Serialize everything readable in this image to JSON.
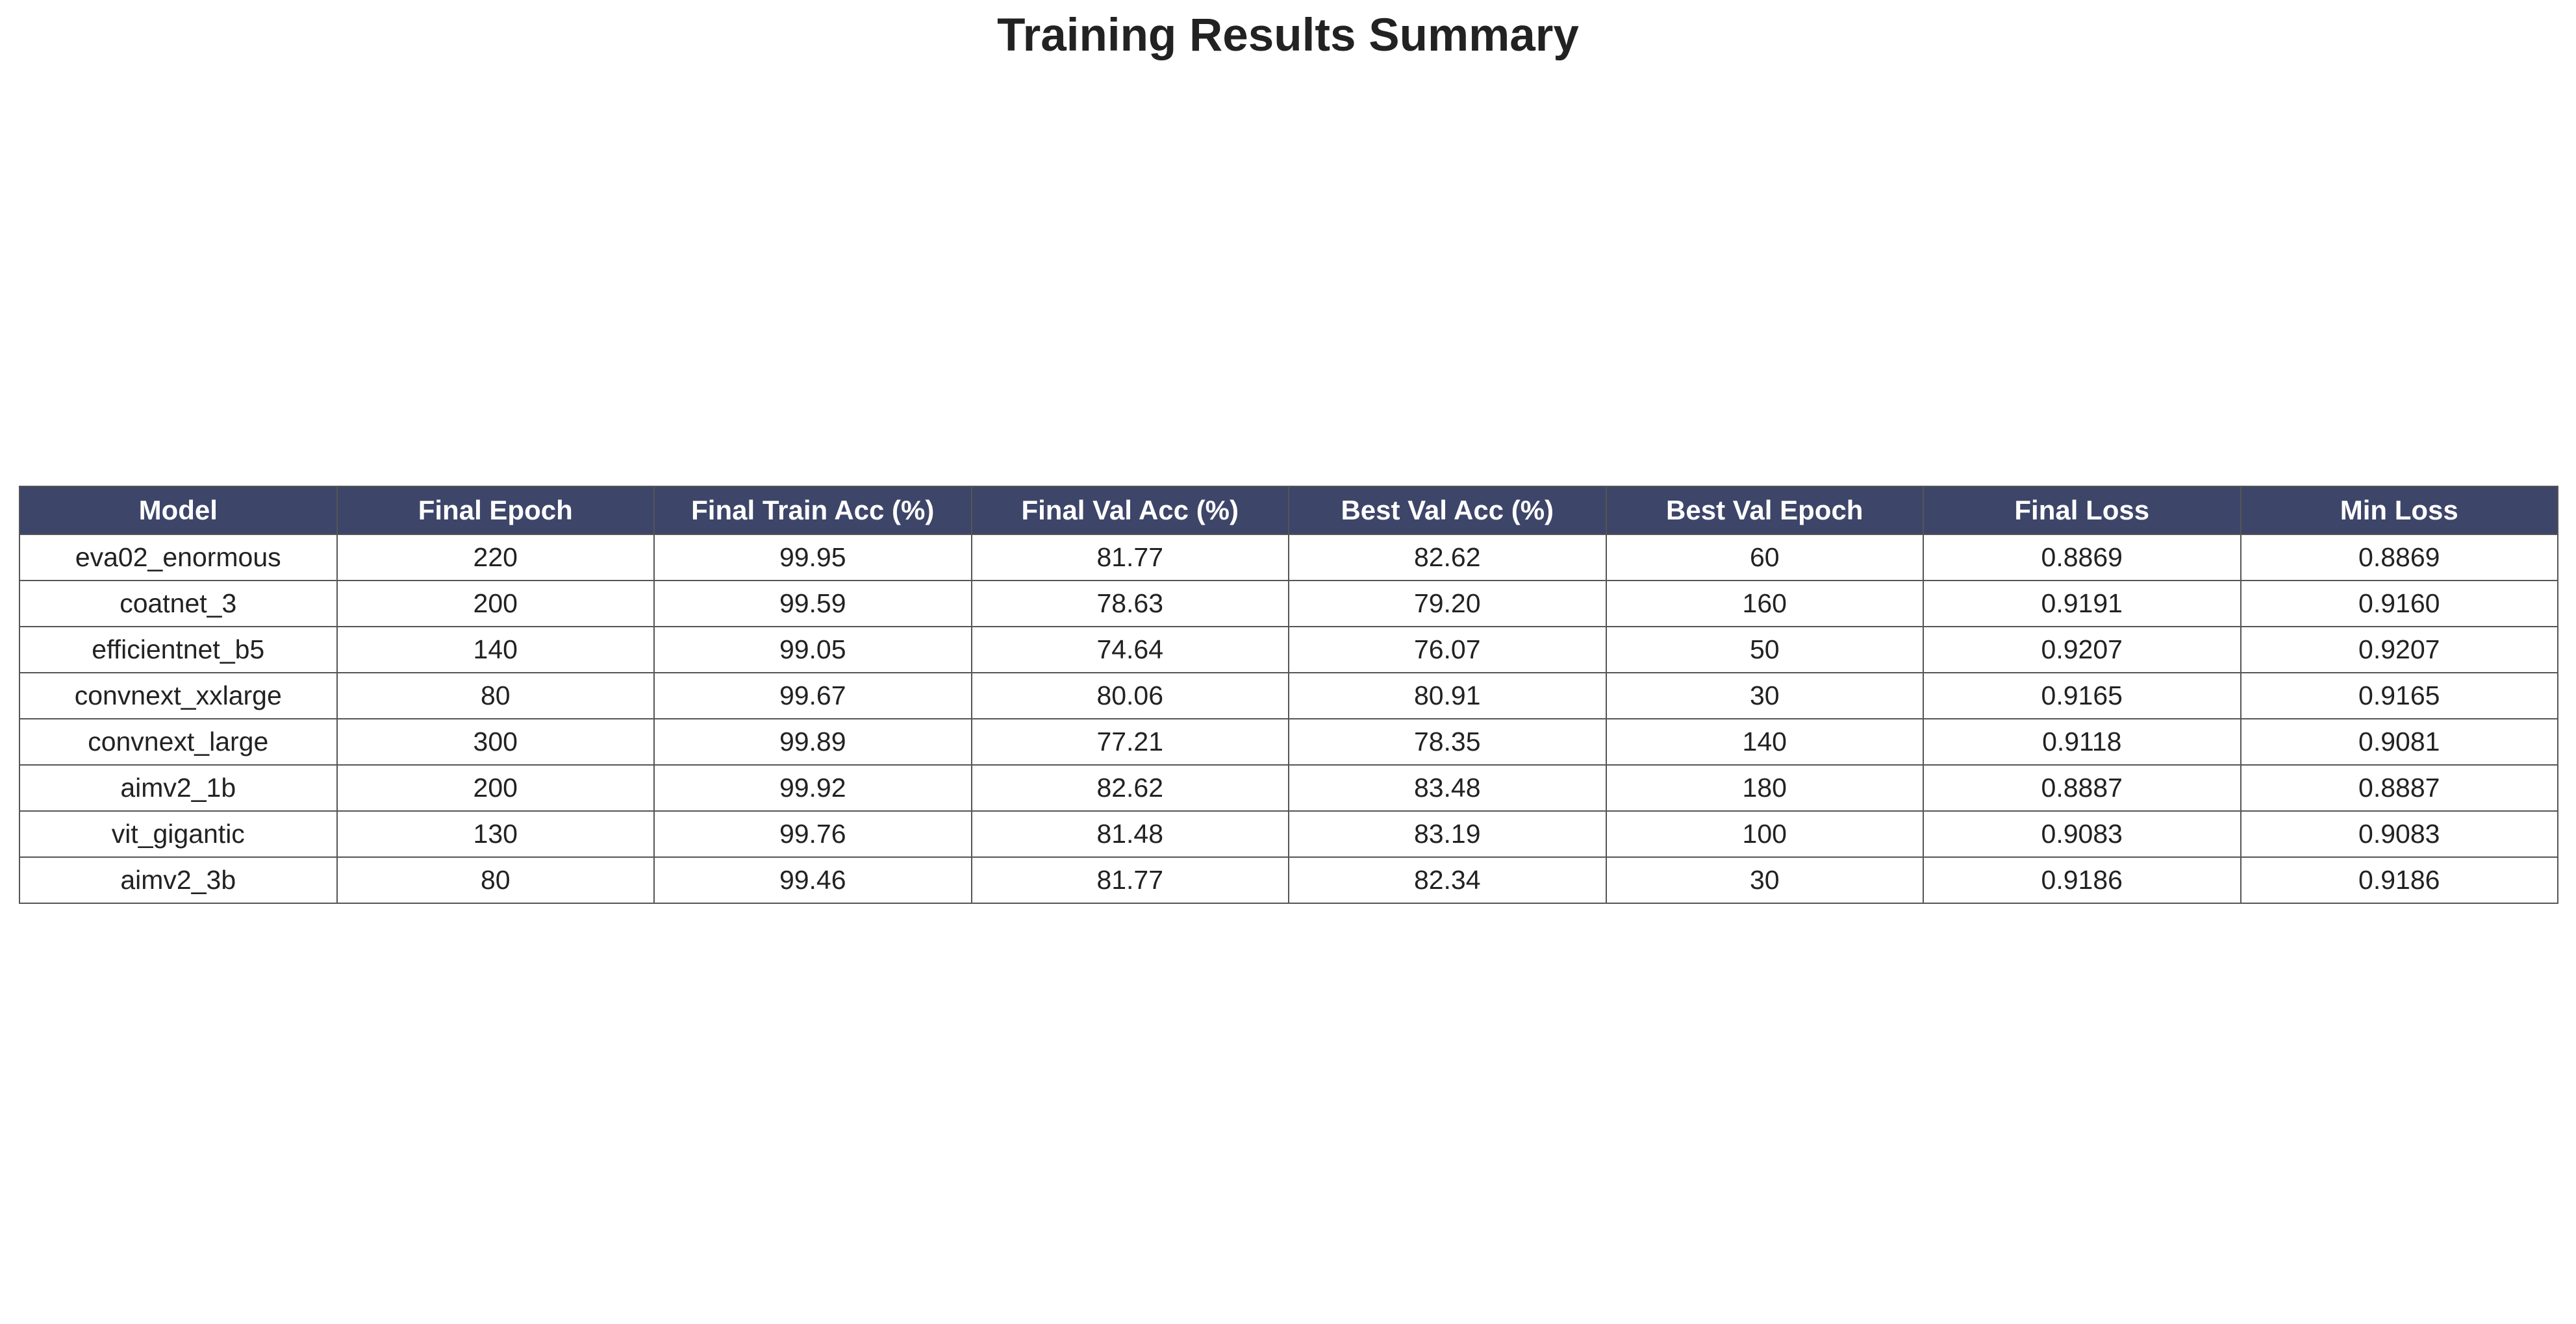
{
  "chart_data": {
    "type": "table",
    "title": "Training Results Summary",
    "columns": [
      "Model",
      "Final Epoch",
      "Final Train Acc (%)",
      "Final Val Acc (%)",
      "Best Val Acc (%)",
      "Best Val Epoch",
      "Final Loss",
      "Min Loss"
    ],
    "rows": [
      [
        "eva02_enormous",
        "220",
        "99.95",
        "81.77",
        "82.62",
        "60",
        "0.8869",
        "0.8869"
      ],
      [
        "coatnet_3",
        "200",
        "99.59",
        "78.63",
        "79.20",
        "160",
        "0.9191",
        "0.9160"
      ],
      [
        "efficientnet_b5",
        "140",
        "99.05",
        "74.64",
        "76.07",
        "50",
        "0.9207",
        "0.9207"
      ],
      [
        "convnext_xxlarge",
        "80",
        "99.67",
        "80.06",
        "80.91",
        "30",
        "0.9165",
        "0.9165"
      ],
      [
        "convnext_large",
        "300",
        "99.89",
        "77.21",
        "78.35",
        "140",
        "0.9118",
        "0.9081"
      ],
      [
        "aimv2_1b",
        "200",
        "99.92",
        "82.62",
        "83.48",
        "180",
        "0.8887",
        "0.8887"
      ],
      [
        "vit_gigantic",
        "130",
        "99.76",
        "81.48",
        "83.19",
        "100",
        "0.9083",
        "0.9083"
      ],
      [
        "aimv2_3b",
        "80",
        "99.46",
        "81.77",
        "82.34",
        "30",
        "0.9186",
        "0.9186"
      ]
    ],
    "colors": {
      "header_background": "#3d4569",
      "header_text": "#ffffff",
      "cell_text": "#222222",
      "border": "#555555"
    }
  }
}
